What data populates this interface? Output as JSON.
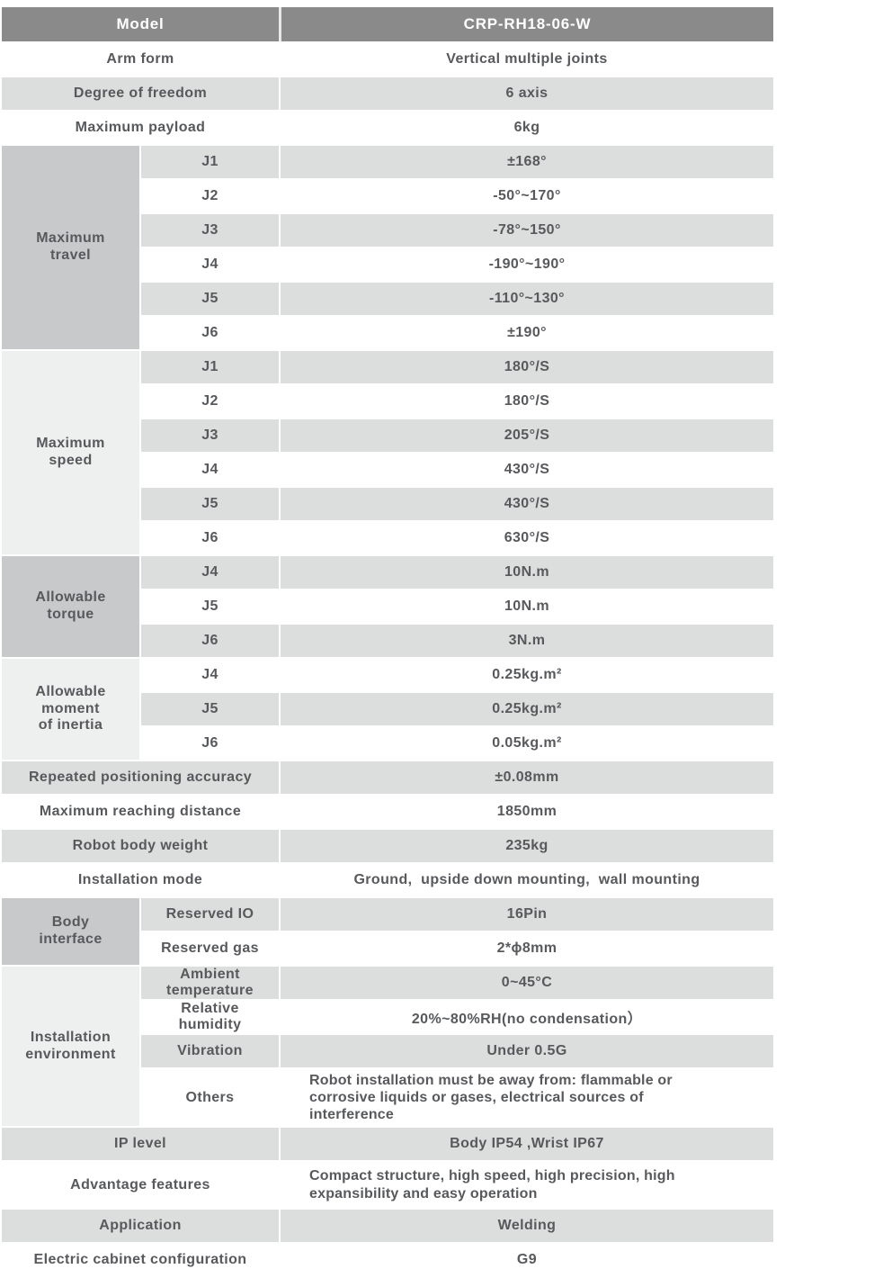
{
  "colors": {
    "header_bg": "#8a8a8a",
    "header_text": "#ffffff",
    "row_gray": "#dcdddd",
    "row_white": "#ffffff",
    "category_dark": "#c8c9cb",
    "category_light": "#eeefef",
    "text": "#57595c"
  },
  "header": {
    "label": "Model",
    "value": "CRP-RH18-06-W"
  },
  "rows_top": [
    {
      "label": "Arm form",
      "value": "Vertical multiple joints"
    },
    {
      "label": "Degree of freedom",
      "value": "6 axis"
    },
    {
      "label": "Maximum payload",
      "value": "6kg"
    }
  ],
  "groups": [
    {
      "category": "Maximum travel",
      "rows": [
        {
          "joint": "J1",
          "value": "±168°"
        },
        {
          "joint": "J2",
          "value": "-50°~170°"
        },
        {
          "joint": "J3",
          "value": "-78°~150°"
        },
        {
          "joint": "J4",
          "value": "-190°~190°"
        },
        {
          "joint": "J5",
          "value": "-110°~130°"
        },
        {
          "joint": "J6",
          "value": "±190°"
        }
      ]
    },
    {
      "category": "Maximum speed",
      "rows": [
        {
          "joint": "J1",
          "value": "180°/S"
        },
        {
          "joint": "J2",
          "value": "180°/S"
        },
        {
          "joint": "J3",
          "value": "205°/S"
        },
        {
          "joint": "J4",
          "value": "430°/S"
        },
        {
          "joint": "J5",
          "value": "430°/S"
        },
        {
          "joint": "J6",
          "value": "630°/S"
        }
      ]
    },
    {
      "category": "Allowable torque",
      "rows": [
        {
          "joint": "J4",
          "value": "10N.m"
        },
        {
          "joint": "J5",
          "value": "10N.m"
        },
        {
          "joint": "J6",
          "value": "3N.m"
        }
      ]
    },
    {
      "category": "Allowable moment of inertia",
      "rows": [
        {
          "joint": "J4",
          "value": "0.25kg.m²"
        },
        {
          "joint": "J5",
          "value": "0.25kg.m²"
        },
        {
          "joint": "J6",
          "value": "0.05kg.m²"
        }
      ]
    }
  ],
  "rows_mid": [
    {
      "label": "Repeated positioning accuracy",
      "value": "±0.08mm"
    },
    {
      "label": "Maximum reaching distance",
      "value": "1850mm"
    },
    {
      "label": "Robot body weight",
      "value": "235kg"
    },
    {
      "label": "Installation mode",
      "value": "Ground,  upside down mounting,  wall mounting"
    }
  ],
  "groups2": [
    {
      "category": "Body interface",
      "rows": [
        {
          "joint": "Reserved IO",
          "value": "16Pin"
        },
        {
          "joint": "Reserved gas",
          "value": "2*ϕ8mm"
        }
      ]
    },
    {
      "category": "Installation environment",
      "rows": [
        {
          "joint": "Ambient temperature",
          "value": "0~45°C"
        },
        {
          "joint": "Relative humidity",
          "value": "20%~80%RH(no condensation）"
        },
        {
          "joint": "Vibration",
          "value": "Under 0.5G"
        },
        {
          "joint": "Others",
          "value": "Robot installation must be away from: flammable or corrosive liquids or gases, electrical sources of interference"
        }
      ]
    }
  ],
  "rows_bottom": [
    {
      "label": "IP level",
      "value": "Body IP54 ,Wrist IP67"
    },
    {
      "label": "Advantage features",
      "value": "Compact structure, high speed, high precision, high expansibility and easy operation"
    },
    {
      "label": "Application",
      "value": "Welding"
    },
    {
      "label": "Electric cabinet configuration",
      "value": "G9"
    }
  ]
}
